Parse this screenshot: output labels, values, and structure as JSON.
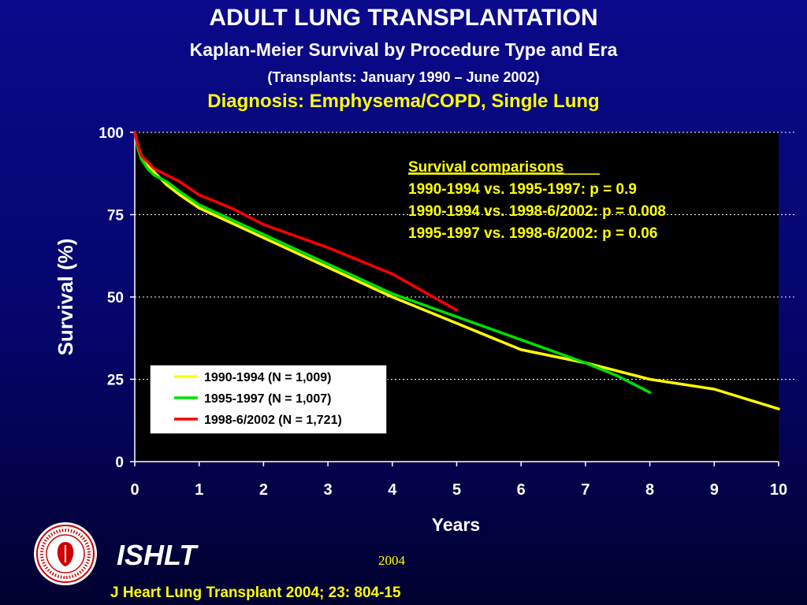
{
  "header": {
    "title": "ADULT LUNG TRANSPLANTATION",
    "subtitle": "Kaplan-Meier Survival by Procedure Type and Era",
    "period": "(Transplants: January 1990 – June 2002)",
    "diagnosis": "Diagnosis: Emphysema/COPD, Single Lung"
  },
  "footer": {
    "org": "ISHLT",
    "year": "2004",
    "citation": "J Heart Lung Transplant 2004; 23: 804-15",
    "logo_icon": "ishlt-seal-logo"
  },
  "colors": {
    "background": "#05056a",
    "plot_bg": "#000000",
    "accent_text": "#ffff00",
    "s1990": "#ffff00",
    "s1995": "#00e000",
    "s1998": "#ff0000"
  },
  "chart_data": {
    "type": "line",
    "xlabel": "Years",
    "ylabel": "Survival (%)",
    "xlim": [
      0,
      10
    ],
    "ylim": [
      0,
      100
    ],
    "x_ticks": [
      "0",
      "1",
      "2",
      "3",
      "4",
      "5",
      "6",
      "7",
      "8",
      "9",
      "10"
    ],
    "y_ticks": [
      "0",
      "25",
      "50",
      "75",
      "100"
    ],
    "grid": "horizontal dotted",
    "legend_position": "bottom-left",
    "annotation": {
      "title": "Survival comparisons",
      "lines": [
        "1990-1994 vs. 1995-1997:  p = 0.9",
        "1990-1994 vs. 1998-6/2002: p = 0.008",
        "1995-1997 vs. 1998-6/2002: p = 0.06"
      ]
    },
    "series": [
      {
        "name": "1990-1994 (N = 1,009)",
        "color": "#ffff00",
        "x": [
          0,
          0.05,
          0.1,
          0.2,
          0.3,
          0.5,
          0.7,
          1,
          2,
          3,
          4,
          5,
          6,
          7,
          8,
          9,
          10
        ],
        "y": [
          100,
          96,
          93,
          90,
          88,
          84,
          81,
          77,
          68,
          59,
          50,
          42,
          34,
          30,
          25,
          22,
          16
        ]
      },
      {
        "name": "1995-1997  (N = 1,007)",
        "color": "#00e000",
        "x": [
          0,
          0.05,
          0.1,
          0.2,
          0.3,
          0.5,
          0.7,
          1,
          2,
          3,
          4,
          5,
          6,
          7,
          7.5,
          8
        ],
        "y": [
          100,
          95,
          92,
          89,
          87,
          85,
          82,
          78,
          69,
          60,
          51,
          44,
          37,
          30,
          26,
          21
        ]
      },
      {
        "name": "1998-6/2002 (N = 1,721)",
        "color": "#ff0000",
        "x": [
          0,
          0.05,
          0.1,
          0.2,
          0.3,
          0.5,
          0.7,
          1,
          1.5,
          2,
          3,
          4,
          5
        ],
        "y": [
          100,
          96,
          93,
          91,
          89,
          87,
          85,
          81,
          77,
          72,
          65,
          57,
          46
        ]
      }
    ]
  }
}
